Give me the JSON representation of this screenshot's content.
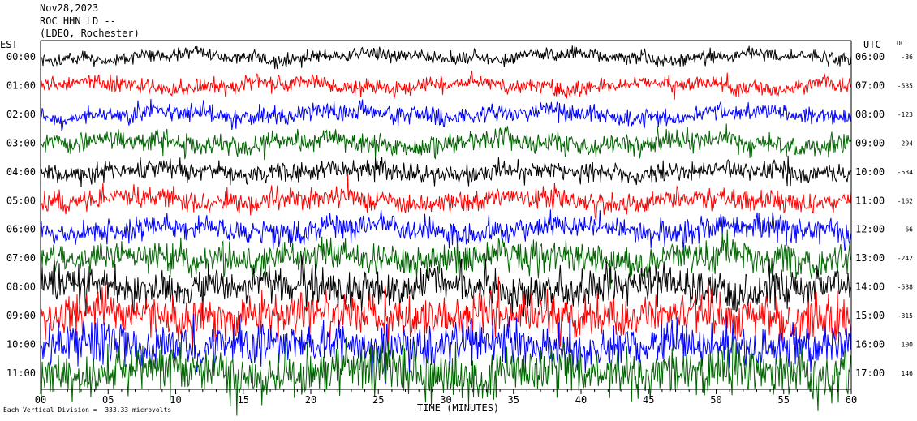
{
  "header": {
    "line1": "Nov28,2023",
    "line2": "ROC HHN LD --",
    "line3": "(LDEO, Rochester)"
  },
  "axis": {
    "left_tz": "EST",
    "right_tz": "UTC",
    "dc_label": "DC",
    "xlabel": "TIME (MINUTES)",
    "footer": "Each Vertical Division =  333.33 microvolts"
  },
  "chart_data": {
    "type": "line",
    "title": "",
    "xlabel": "TIME (MINUTES)",
    "xlim": [
      0,
      60
    ],
    "x_ticks": [
      "00",
      "05",
      "10",
      "15",
      "20",
      "25",
      "30",
      "35",
      "40",
      "45",
      "50",
      "55",
      "60"
    ],
    "trace_colors": [
      "#000000",
      "#ff0000",
      "#0000ff",
      "#006400"
    ],
    "rows": [
      {
        "left": "00:00",
        "right": "06:00",
        "dc": "-36",
        "color": "#000000",
        "noise": 0.35
      },
      {
        "left": "01:00",
        "right": "07:00",
        "dc": "-535",
        "color": "#ff0000",
        "noise": 0.4
      },
      {
        "left": "02:00",
        "right": "08:00",
        "dc": "-123",
        "color": "#0000ff",
        "noise": 0.45
      },
      {
        "left": "03:00",
        "right": "09:00",
        "dc": "-294",
        "color": "#006400",
        "noise": 0.55
      },
      {
        "left": "04:00",
        "right": "10:00",
        "dc": "-534",
        "color": "#000000",
        "noise": 0.5
      },
      {
        "left": "05:00",
        "right": "11:00",
        "dc": "-162",
        "color": "#ff0000",
        "noise": 0.55
      },
      {
        "left": "06:00",
        "right": "12:00",
        "dc": "66",
        "color": "#0000ff",
        "noise": 0.65
      },
      {
        "left": "07:00",
        "right": "13:00",
        "dc": "-242",
        "color": "#006400",
        "noise": 0.8
      },
      {
        "left": "08:00",
        "right": "14:00",
        "dc": "-538",
        "color": "#000000",
        "noise": 0.95
      },
      {
        "left": "09:00",
        "right": "15:00",
        "dc": "-315",
        "color": "#ff0000",
        "noise": 1.1
      },
      {
        "left": "10:00",
        "right": "16:00",
        "dc": "100",
        "color": "#0000ff",
        "noise": 1.1
      },
      {
        "left": "11:00",
        "right": "17:00",
        "dc": "146",
        "color": "#006400",
        "noise": 1.2
      }
    ]
  }
}
